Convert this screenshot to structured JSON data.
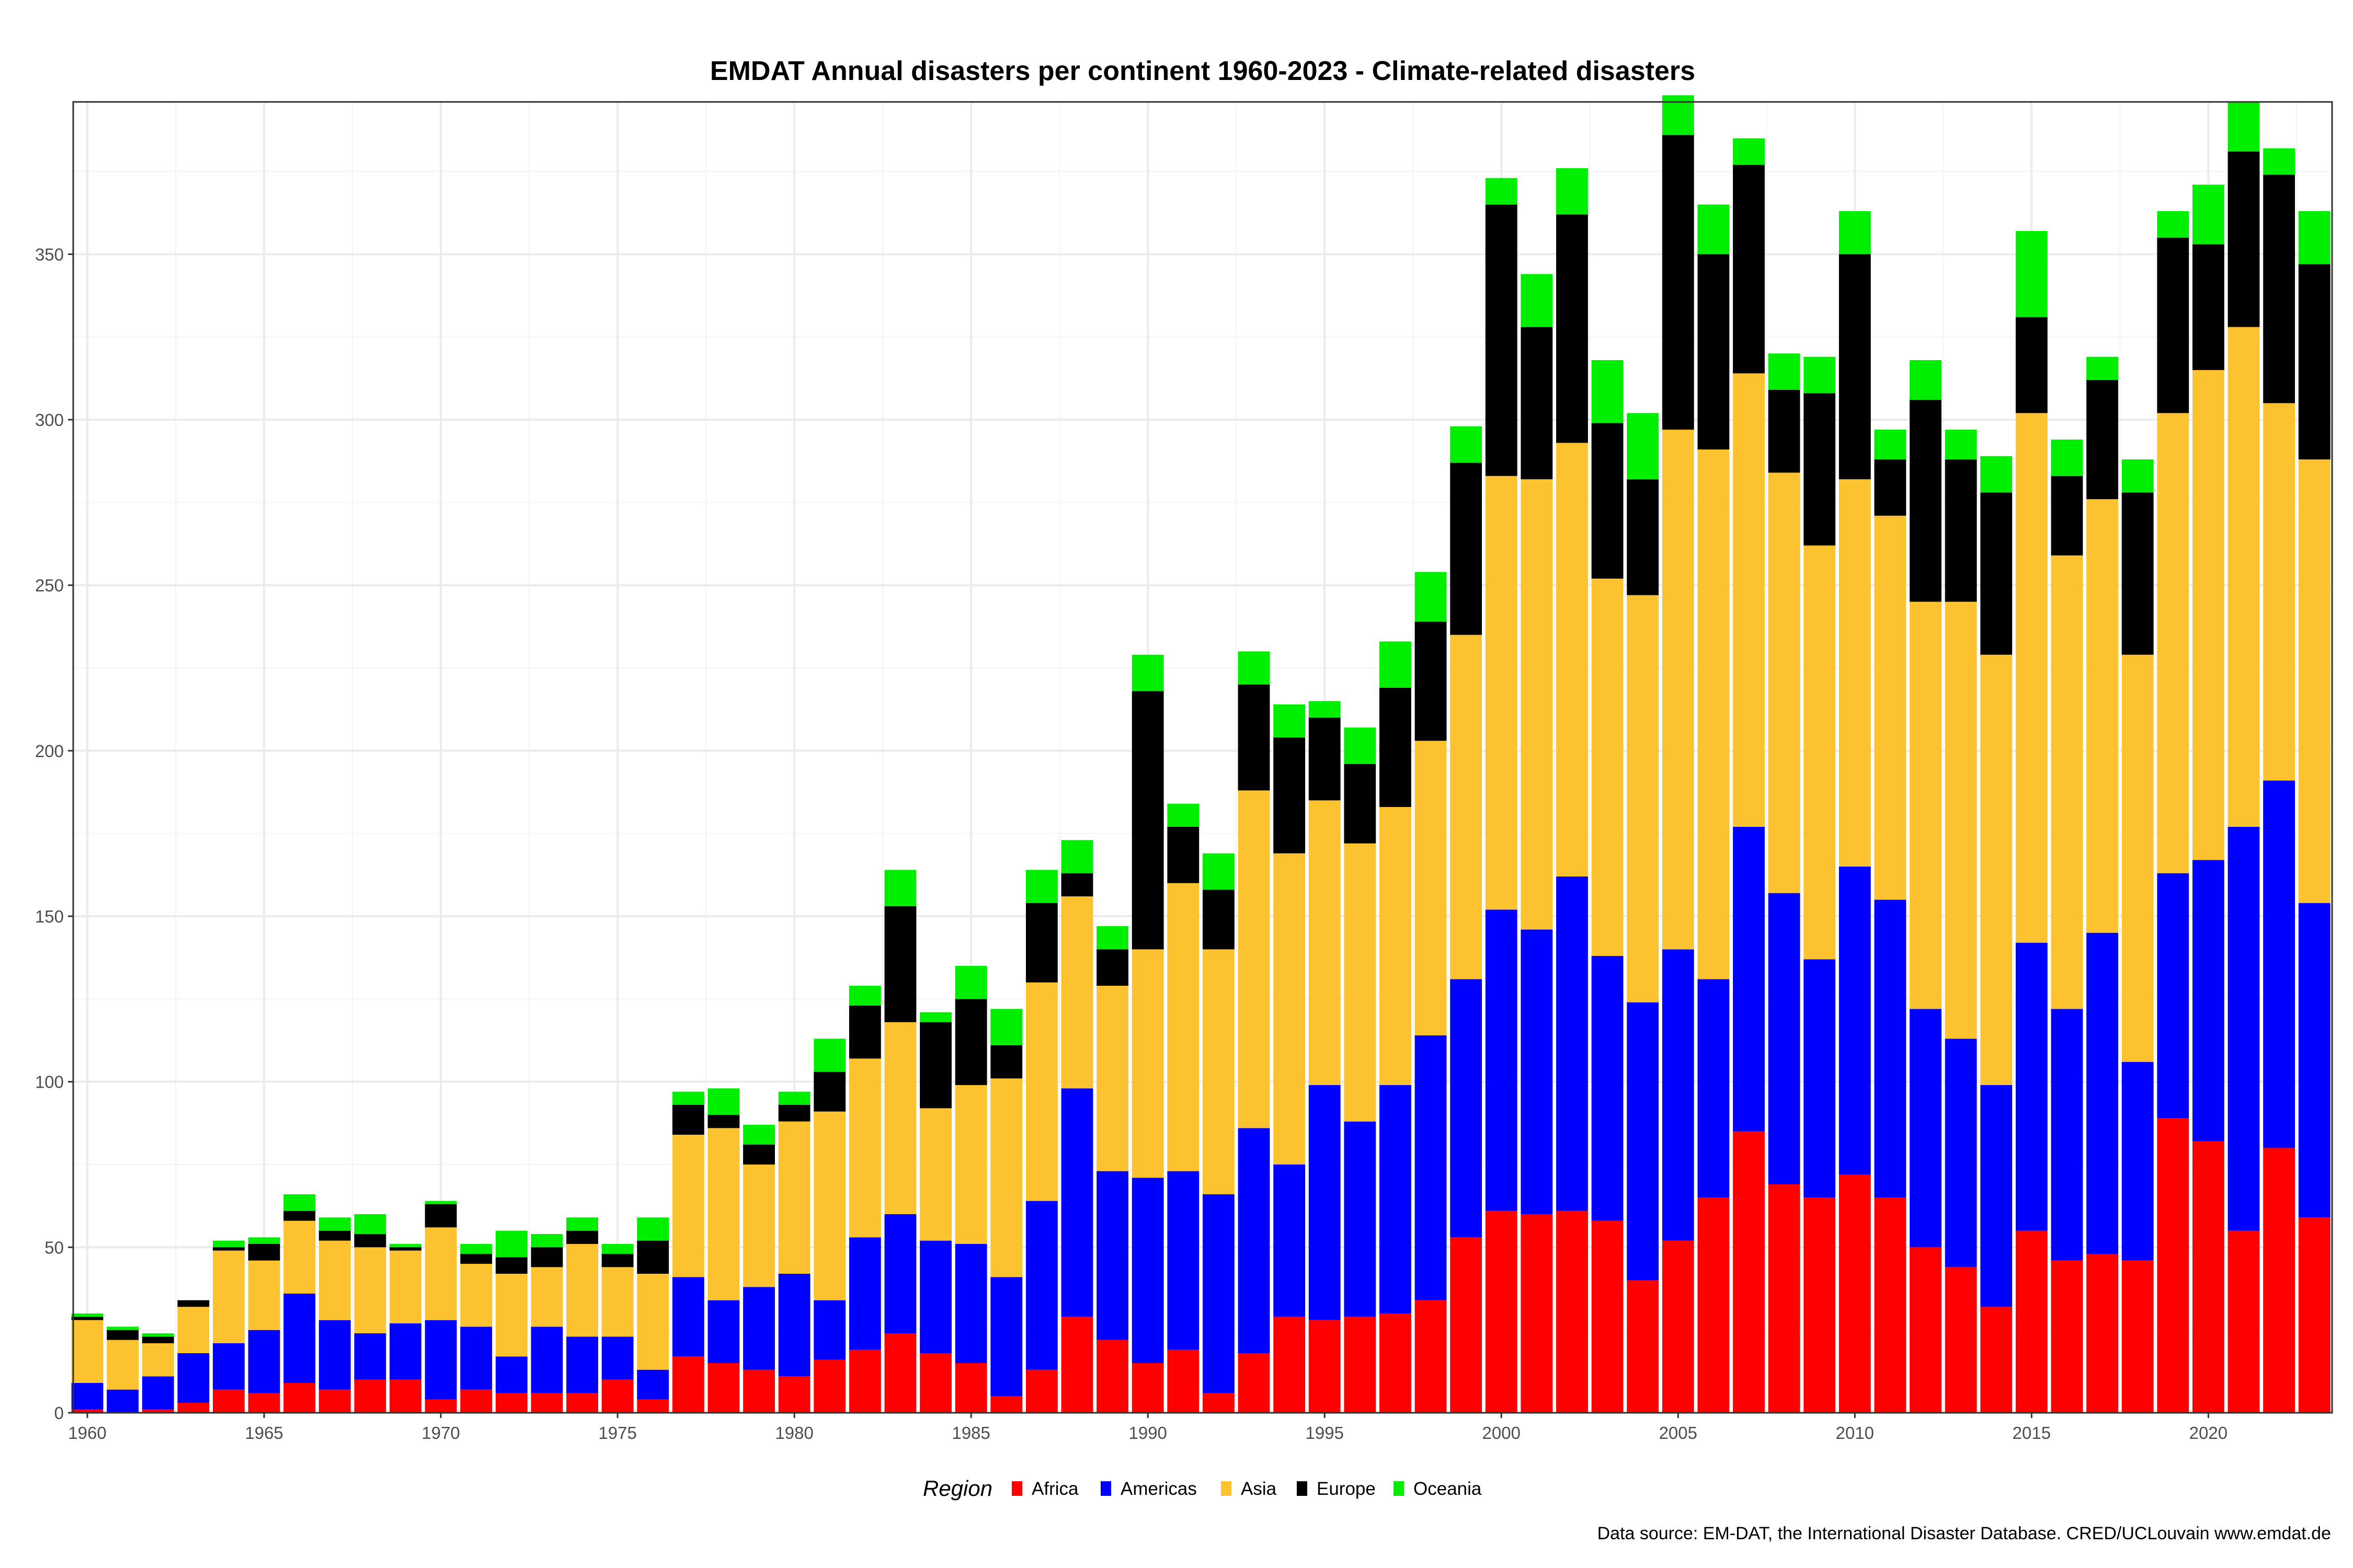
{
  "chart_data": {
    "type": "bar",
    "stacked": true,
    "title": "EMDAT Annual disasters per continent 1960-2023 - Climate-related disasters",
    "xlabel": "",
    "ylabel": "",
    "x": [
      1960,
      1961,
      1962,
      1963,
      1964,
      1965,
      1966,
      1967,
      1968,
      1969,
      1970,
      1971,
      1972,
      1973,
      1974,
      1975,
      1976,
      1977,
      1978,
      1979,
      1980,
      1981,
      1982,
      1983,
      1984,
      1985,
      1986,
      1987,
      1988,
      1989,
      1990,
      1991,
      1992,
      1993,
      1994,
      1995,
      1996,
      1997,
      1998,
      1999,
      2000,
      2001,
      2002,
      2003,
      2004,
      2005,
      2006,
      2007,
      2008,
      2009,
      2010,
      2011,
      2012,
      2013,
      2014,
      2015,
      2016,
      2017,
      2018,
      2019,
      2020,
      2021,
      2022,
      2023
    ],
    "xticks": [
      1960,
      1965,
      1970,
      1975,
      1980,
      1985,
      1990,
      1995,
      2000,
      2005,
      2010,
      2015,
      2020
    ],
    "xlim": [
      1959.6,
      2023.5
    ],
    "yticks": [
      0,
      50,
      100,
      150,
      200,
      250,
      300,
      350
    ],
    "ylim": [
      0,
      396
    ],
    "grid": true,
    "legend": {
      "title": "Region",
      "position": "bottom"
    },
    "caption": "Data source: EM-DAT, the International Disaster Database. CRED/UCLouvain www.emdat.de",
    "series": [
      {
        "name": "Africa",
        "color": "#ff0000",
        "values": [
          1,
          0,
          1,
          3,
          7,
          6,
          9,
          7,
          10,
          10,
          4,
          7,
          6,
          6,
          6,
          10,
          4,
          17,
          15,
          13,
          11,
          16,
          19,
          24,
          18,
          15,
          5,
          13,
          29,
          22,
          15,
          19,
          6,
          18,
          29,
          28,
          29,
          30,
          34,
          53,
          61,
          60,
          61,
          58,
          40,
          52,
          65,
          85,
          69,
          65,
          72,
          65,
          50,
          44,
          32,
          55,
          46,
          48,
          46,
          89,
          82,
          55,
          80,
          59
        ]
      },
      {
        "name": "Americas",
        "color": "#0000ff",
        "values": [
          8,
          7,
          10,
          15,
          14,
          19,
          27,
          21,
          14,
          17,
          24,
          19,
          11,
          20,
          17,
          13,
          9,
          24,
          19,
          25,
          31,
          18,
          34,
          36,
          34,
          36,
          36,
          51,
          69,
          51,
          56,
          54,
          60,
          68,
          46,
          71,
          59,
          69,
          80,
          78,
          91,
          86,
          101,
          80,
          84,
          88,
          66,
          92,
          88,
          72,
          93,
          90,
          72,
          69,
          67,
          87,
          76,
          97,
          60,
          74,
          85,
          122,
          111,
          95
        ]
      },
      {
        "name": "Asia",
        "color": "#fdc230",
        "values": [
          19,
          15,
          10,
          14,
          28,
          21,
          22,
          24,
          26,
          22,
          28,
          19,
          25,
          18,
          28,
          21,
          29,
          43,
          52,
          37,
          46,
          57,
          54,
          58,
          40,
          48,
          60,
          66,
          58,
          56,
          69,
          87,
          74,
          102,
          94,
          86,
          84,
          84,
          89,
          104,
          131,
          136,
          131,
          114,
          123,
          157,
          160,
          137,
          127,
          125,
          117,
          116,
          123,
          132,
          130,
          160,
          137,
          131,
          123,
          139,
          148,
          151,
          114,
          134
        ]
      },
      {
        "name": "Europe",
        "color": "#000000",
        "values": [
          1,
          3,
          2,
          2,
          1,
          5,
          3,
          3,
          4,
          1,
          7,
          3,
          5,
          6,
          4,
          4,
          10,
          9,
          4,
          6,
          5,
          12,
          16,
          35,
          26,
          26,
          10,
          24,
          7,
          11,
          78,
          17,
          18,
          32,
          35,
          25,
          24,
          36,
          36,
          52,
          82,
          46,
          69,
          47,
          35,
          89,
          59,
          63,
          25,
          46,
          68,
          17,
          61,
          43,
          49,
          29,
          24,
          36,
          49,
          53,
          38,
          53,
          69,
          59
        ]
      },
      {
        "name": "Oceania",
        "color": "#00ee00",
        "values": [
          1,
          1,
          1,
          0,
          2,
          2,
          5,
          4,
          6,
          1,
          1,
          3,
          8,
          4,
          4,
          3,
          7,
          4,
          8,
          6,
          4,
          10,
          6,
          11,
          3,
          10,
          11,
          10,
          10,
          7,
          11,
          7,
          11,
          10,
          10,
          5,
          11,
          14,
          15,
          11,
          8,
          16,
          14,
          19,
          20,
          12,
          15,
          8,
          11,
          11,
          13,
          9,
          12,
          9,
          11,
          26,
          11,
          7,
          10,
          8,
          18,
          15,
          8,
          16
        ]
      }
    ]
  }
}
